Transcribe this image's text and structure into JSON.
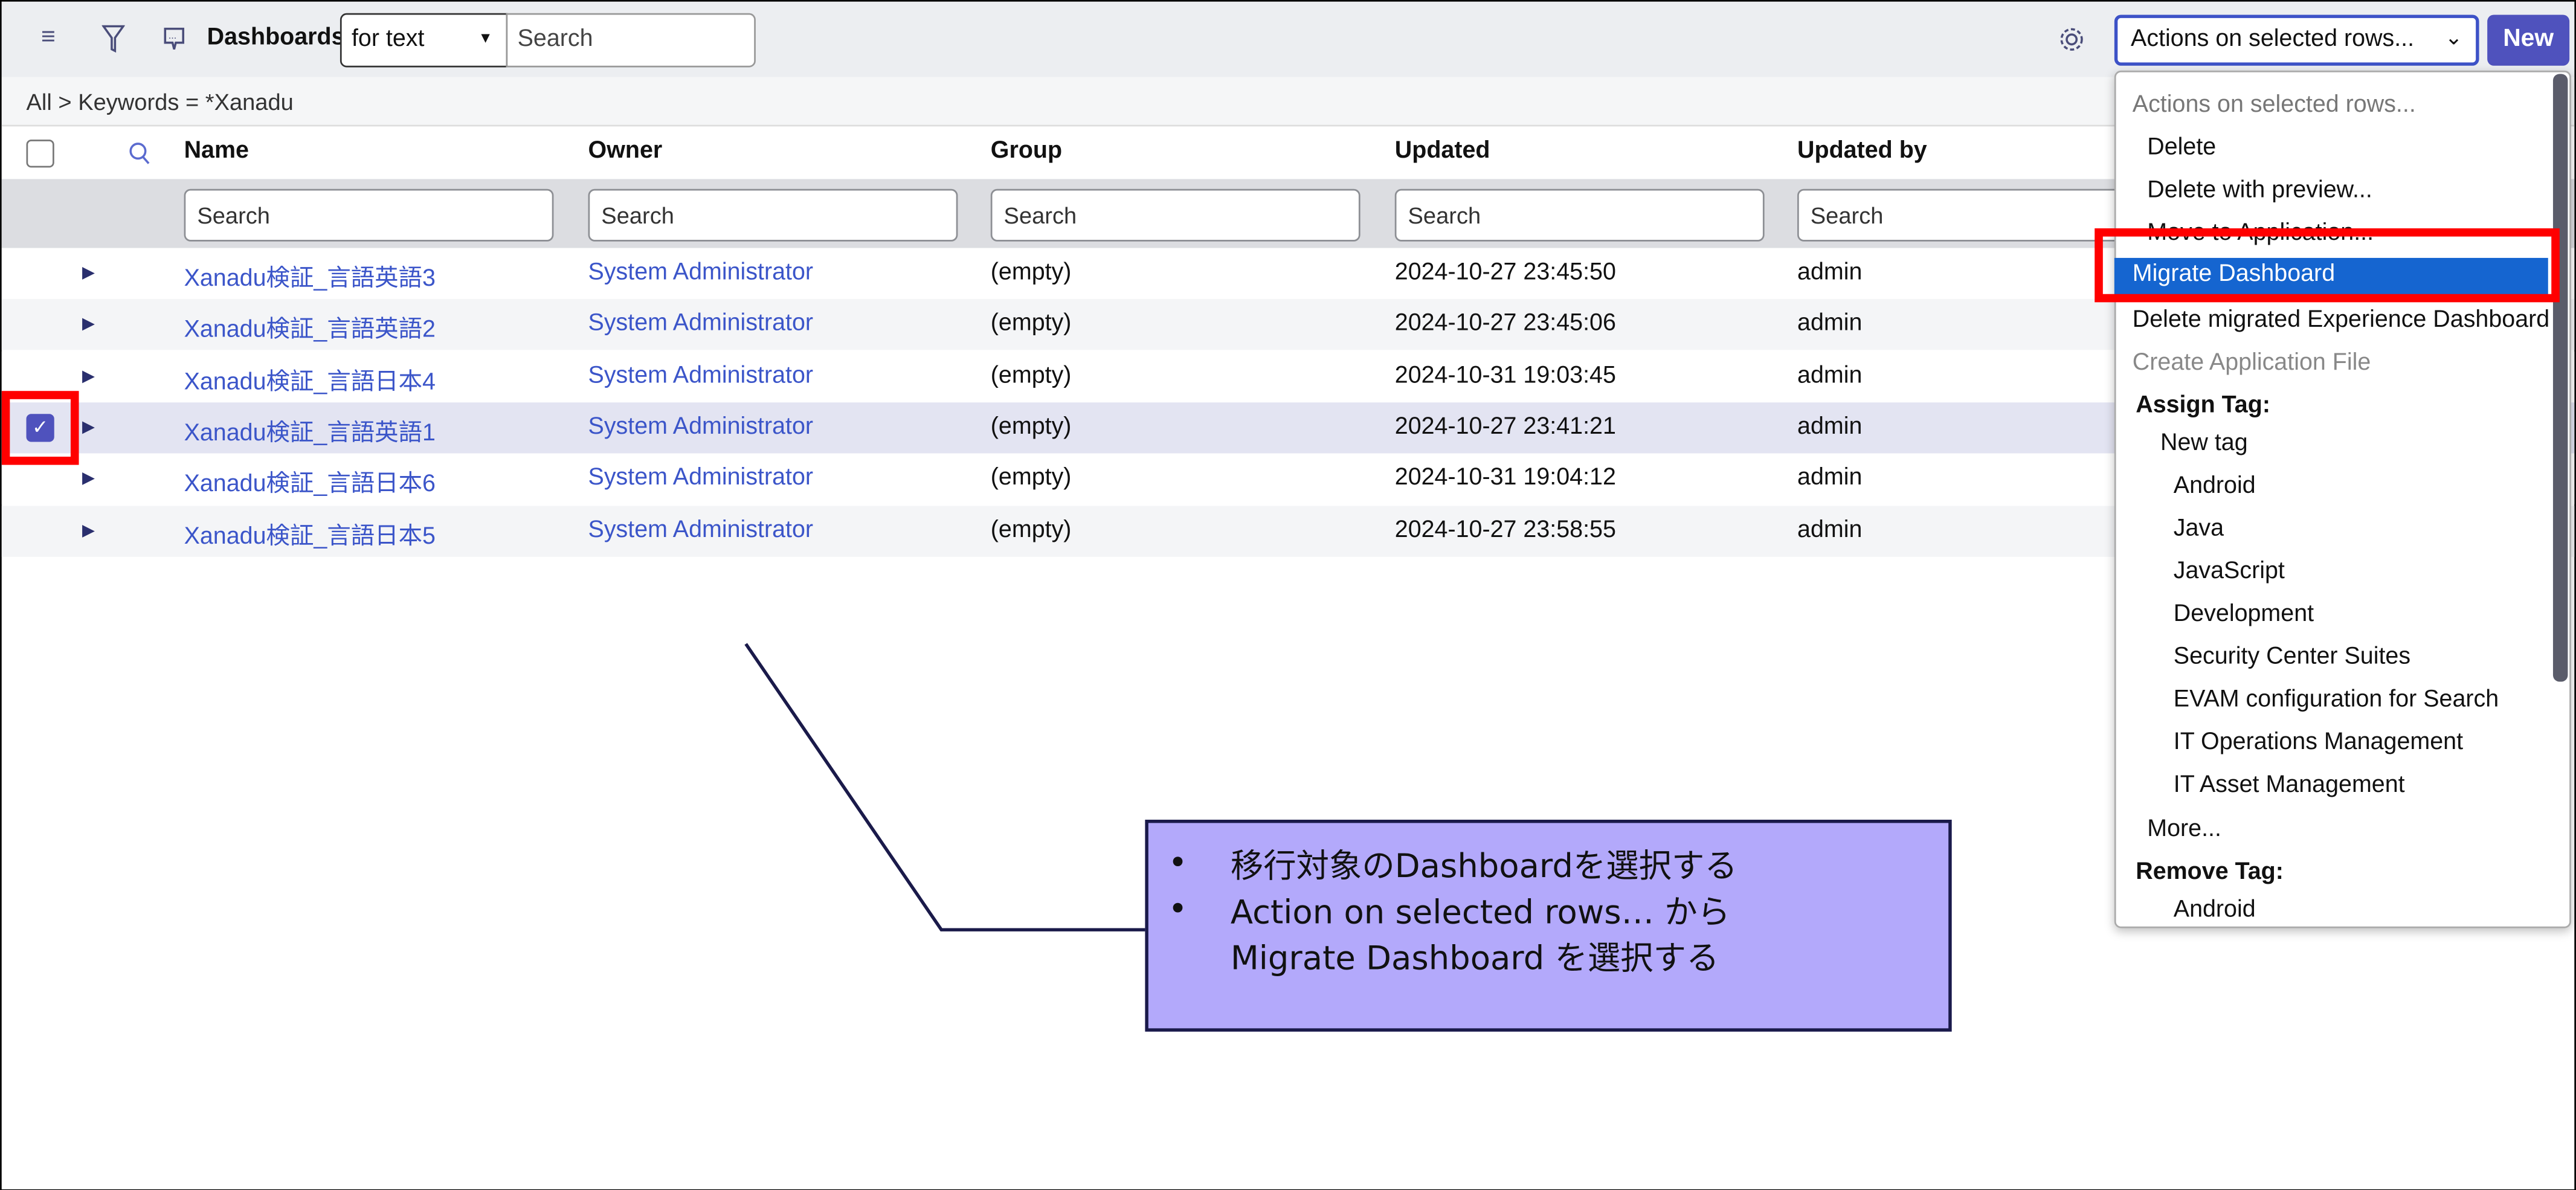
{
  "toolbar": {
    "title": "Dashboards",
    "search_mode": "for text",
    "search_placeholder": "Search",
    "actions_select": "Actions on selected rows...",
    "new_label": "New",
    "accent": "#4f52bd"
  },
  "breadcrumb": "All > Keywords = *Xanadu",
  "columns": [
    "Name",
    "Owner",
    "Group",
    "Updated",
    "Updated by"
  ],
  "filter_placeholder": "Search",
  "rows": [
    {
      "name": "Xanadu検証_言語英語3",
      "owner": "System Administrator",
      "group": "(empty)",
      "updated": "2024-10-27 23:45:50",
      "updated_by": "admin",
      "checked": false
    },
    {
      "name": "Xanadu検証_言語英語2",
      "owner": "System Administrator",
      "group": "(empty)",
      "updated": "2024-10-27 23:45:06",
      "updated_by": "admin",
      "checked": false
    },
    {
      "name": "Xanadu検証_言語日本4",
      "owner": "System Administrator",
      "group": "(empty)",
      "updated": "2024-10-31 19:03:45",
      "updated_by": "admin",
      "checked": false
    },
    {
      "name": "Xanadu検証_言語英語1",
      "owner": "System Administrator",
      "group": "(empty)",
      "updated": "2024-10-27 23:41:21",
      "updated_by": "admin",
      "checked": true
    },
    {
      "name": "Xanadu検証_言語日本6",
      "owner": "System Administrator",
      "group": "(empty)",
      "updated": "2024-10-31 19:04:12",
      "updated_by": "admin",
      "checked": false
    },
    {
      "name": "Xanadu検証_言語日本5",
      "owner": "System Administrator",
      "group": "(empty)",
      "updated": "2024-10-27 23:58:55",
      "updated_by": "admin",
      "checked": false
    }
  ],
  "menu": [
    {
      "label": "Actions on selected rows...",
      "kind": "placeholder"
    },
    {
      "label": "Delete",
      "kind": "item"
    },
    {
      "label": "Delete with preview...",
      "kind": "item"
    },
    {
      "label": "Move to Application...",
      "kind": "item"
    },
    {
      "label": "Migrate Dashboard",
      "kind": "highlighted"
    },
    {
      "label": "Delete migrated Experience Dashboard",
      "kind": "item"
    },
    {
      "label": "Create Application File",
      "kind": "disabled"
    },
    {
      "label": "Assign Tag:",
      "kind": "group"
    },
    {
      "label": "New tag",
      "kind": "sub"
    },
    {
      "label": "Android",
      "kind": "tag"
    },
    {
      "label": "Java",
      "kind": "tag"
    },
    {
      "label": "JavaScript",
      "kind": "tag"
    },
    {
      "label": "Development",
      "kind": "tag"
    },
    {
      "label": "Security Center Suites",
      "kind": "tag"
    },
    {
      "label": "EVAM configuration for Search",
      "kind": "tag"
    },
    {
      "label": "IT Operations Management",
      "kind": "tag"
    },
    {
      "label": "IT Asset Management",
      "kind": "tag"
    },
    {
      "label": "More...",
      "kind": "item"
    },
    {
      "label": "Remove Tag:",
      "kind": "group"
    },
    {
      "label": "Android",
      "kind": "tag"
    }
  ],
  "callout": {
    "bullet": "•",
    "lines": [
      "移行対象のDashboardを選択する",
      "Action on selected rows… から",
      "Migrate Dashboard を選択する"
    ]
  }
}
